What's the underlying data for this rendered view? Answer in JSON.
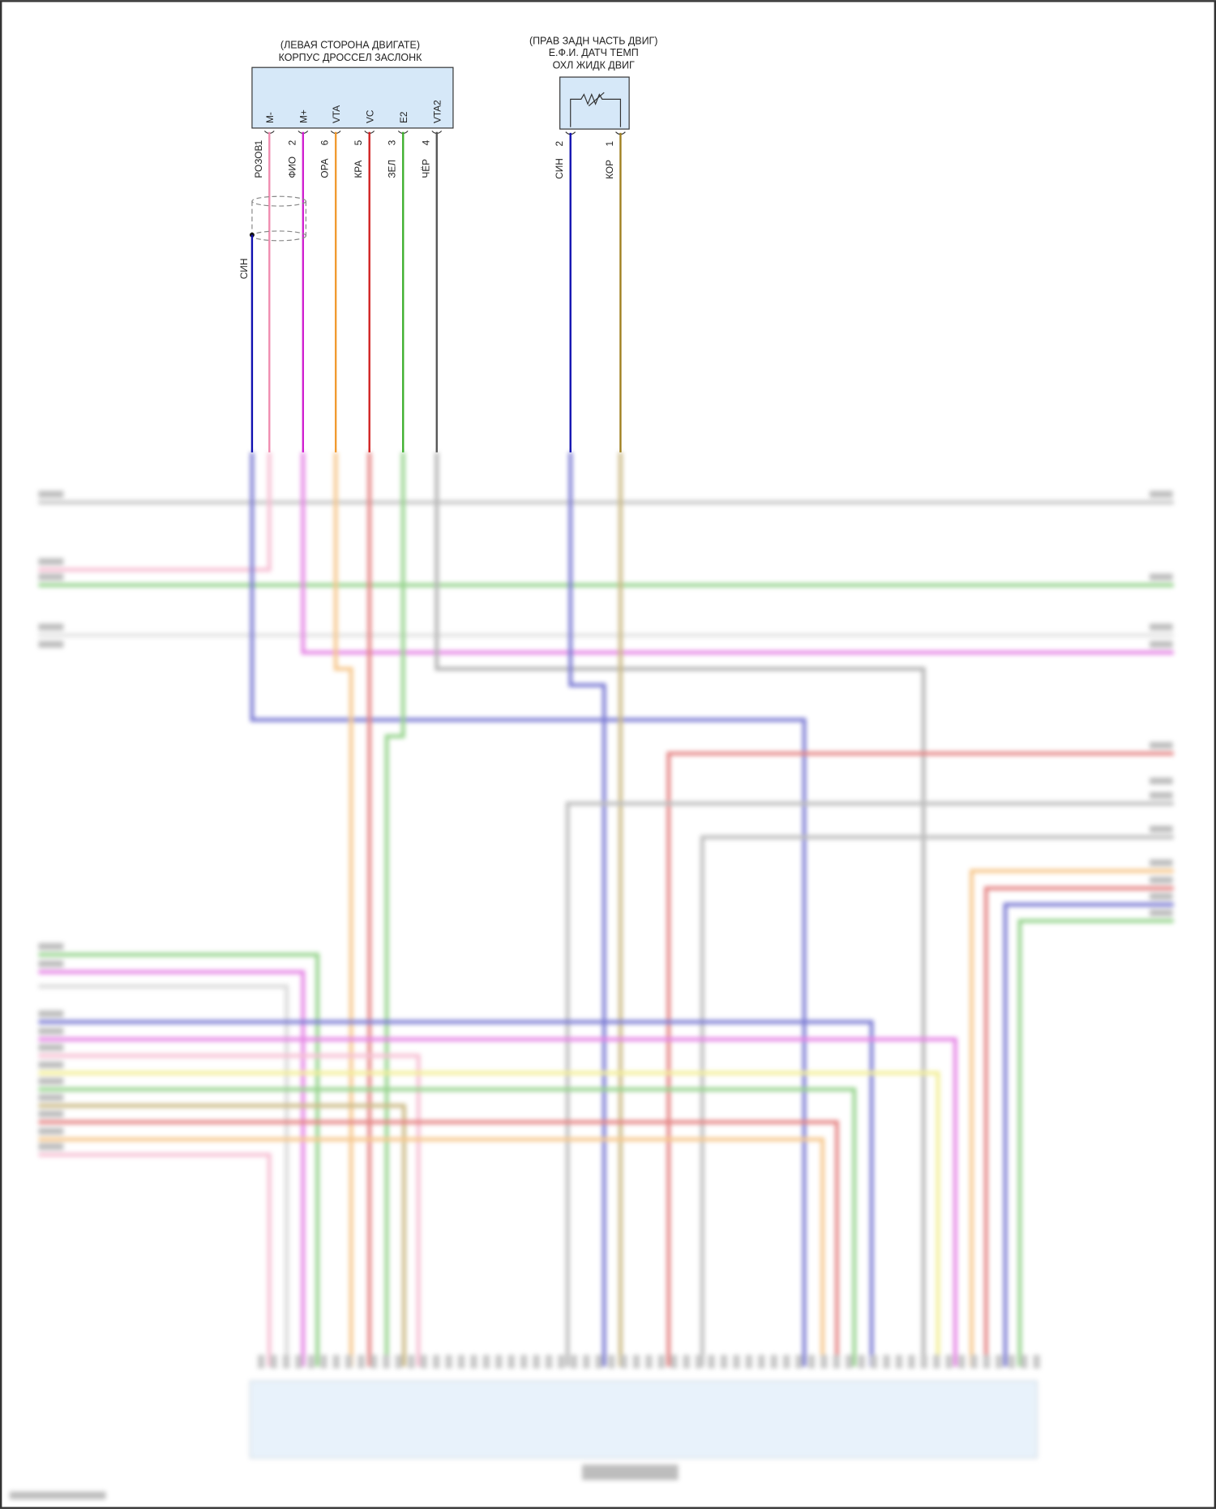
{
  "throttle": {
    "title_line1": "(ЛЕВАЯ СТОРОНА ДВИГАТЕ)",
    "title_line2": "КОРПУС ДРОССЕЛ ЗАСЛОНК",
    "pins": [
      {
        "name": "M-",
        "num": "1",
        "wire": "РОЗОВ",
        "color": "#f08cb0"
      },
      {
        "name": "M+",
        "num": "2",
        "wire": "ФИО",
        "color": "#d020d0"
      },
      {
        "name": "VTA",
        "num": "6",
        "wire": "ОРА",
        "color": "#f09a30"
      },
      {
        "name": "VC",
        "num": "5",
        "wire": "КРА",
        "color": "#d02020"
      },
      {
        "name": "E2",
        "num": "3",
        "wire": "ЗЕЛ",
        "color": "#40b030"
      },
      {
        "name": "VTA2",
        "num": "4",
        "wire": "ЧЁР",
        "color": "#555555"
      }
    ],
    "shield_wire": {
      "wire": "СИН",
      "color": "#1010b0"
    }
  },
  "sensor": {
    "title_line1": "(ПРАВ ЗАДН ЧАСТЬ ДВИГ)",
    "title_line2": "Е.Ф.И. ДАТЧ ТЕМП",
    "title_line3": "ОХЛ ЖИДК ДВИГ",
    "pins": [
      {
        "num": "2",
        "wire": "СИН",
        "color": "#1010b0"
      },
      {
        "num": "1",
        "wire": "КОР",
        "color": "#a08020"
      }
    ]
  },
  "colors": {
    "connector_fill": "#d6e8f8",
    "frame": "#333333"
  }
}
